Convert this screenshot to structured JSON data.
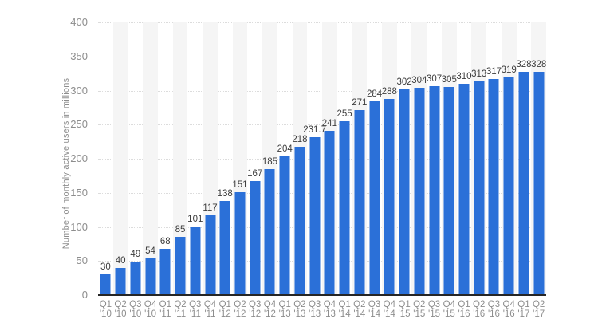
{
  "chart_data": {
    "type": "bar",
    "title": "",
    "xlabel": "",
    "ylabel": "Number of monthly active users in millions",
    "categories": [
      "Q1 '10",
      "Q2 '10",
      "Q3 '10",
      "Q4 '10",
      "Q1 '11",
      "Q2 '11",
      "Q3 '11",
      "Q4 '11",
      "Q1 '12",
      "Q2 '12",
      "Q3 '12",
      "Q4 '12",
      "Q1 '13",
      "Q2 '13",
      "Q3 '13",
      "Q4 '13",
      "Q1 '14",
      "Q2 '14",
      "Q3 '14",
      "Q4 '14",
      "Q1 '15",
      "Q2 '15",
      "Q3 '15",
      "Q4 '15",
      "Q1 '16",
      "Q2 '16",
      "Q3 '16",
      "Q4 '16",
      "Q1 '17",
      "Q2 '17"
    ],
    "values": [
      30,
      40,
      49,
      54,
      68,
      85,
      101,
      117,
      138,
      151,
      167,
      185,
      204,
      218,
      231.7,
      241,
      255,
      271,
      284,
      288,
      302,
      304,
      307,
      305,
      310,
      313,
      317,
      319,
      328,
      328
    ],
    "ylim": [
      0,
      400
    ],
    "yticks": [
      0,
      50,
      100,
      150,
      200,
      250,
      300,
      350,
      400
    ],
    "grid": "horizontal-dotted",
    "legend": "none",
    "column_bands": "alternating",
    "style": {
      "bar": "#2b70d8",
      "band": "#f5f5f5",
      "grid": "#dcdcdc",
      "axis": "#262626",
      "tick": "#8d8d8d",
      "value": "#3d3d3d"
    }
  }
}
